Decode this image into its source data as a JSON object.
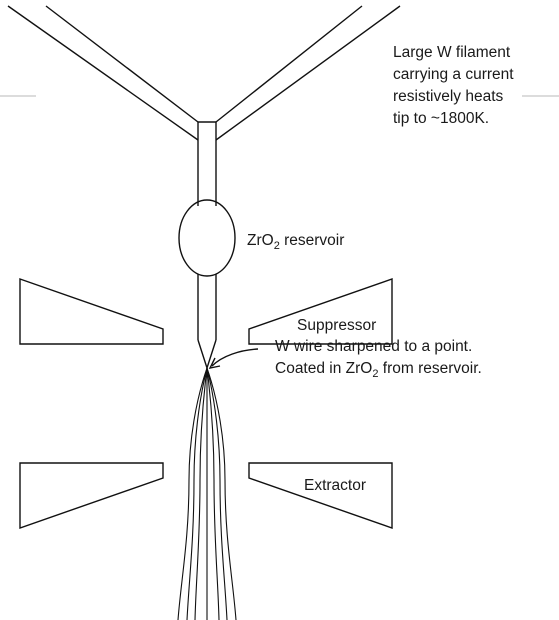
{
  "labels": {
    "filament_line1": "Large W filament",
    "filament_line2": "carrying a current",
    "filament_line3": "resistively heats",
    "filament_line4": "tip to ~1800K.",
    "reservoir_pre": "ZrO",
    "reservoir_sub": "2",
    "reservoir_post": " reservoir",
    "suppressor": "Suppressor",
    "tip_line1": "W wire sharpened to a point.",
    "tip_line2_pre": "Coated in ZrO",
    "tip_line2_sub": "2",
    "tip_line2_post": " from reservoir.",
    "extractor": "Extractor"
  },
  "colors": {
    "ink": "#111111",
    "text": "#1a1a1a",
    "rule": "#b8b8b8",
    "background": "#ffffff"
  }
}
